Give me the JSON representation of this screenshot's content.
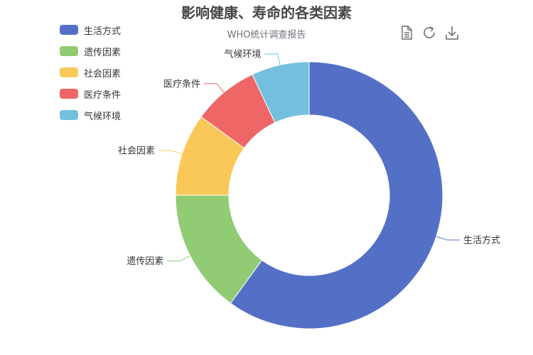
{
  "chart_data": {
    "type": "pie",
    "variant": "donut",
    "title": "影响健康、寿命的各类因素",
    "subtitle": "WHO统计调查报告",
    "categories": [
      "生活方式",
      "遗传因素",
      "社会因素",
      "医疗条件",
      "气候环境"
    ],
    "values": [
      60,
      15,
      10,
      8,
      7
    ],
    "colors": [
      "#5470c6",
      "#91cc75",
      "#fac858",
      "#ee6666",
      "#73c0de"
    ],
    "legend_position": "top-left"
  },
  "toolbox": {
    "items": [
      {
        "name": "data-view-icon"
      },
      {
        "name": "restore-icon"
      },
      {
        "name": "download-icon"
      }
    ]
  }
}
